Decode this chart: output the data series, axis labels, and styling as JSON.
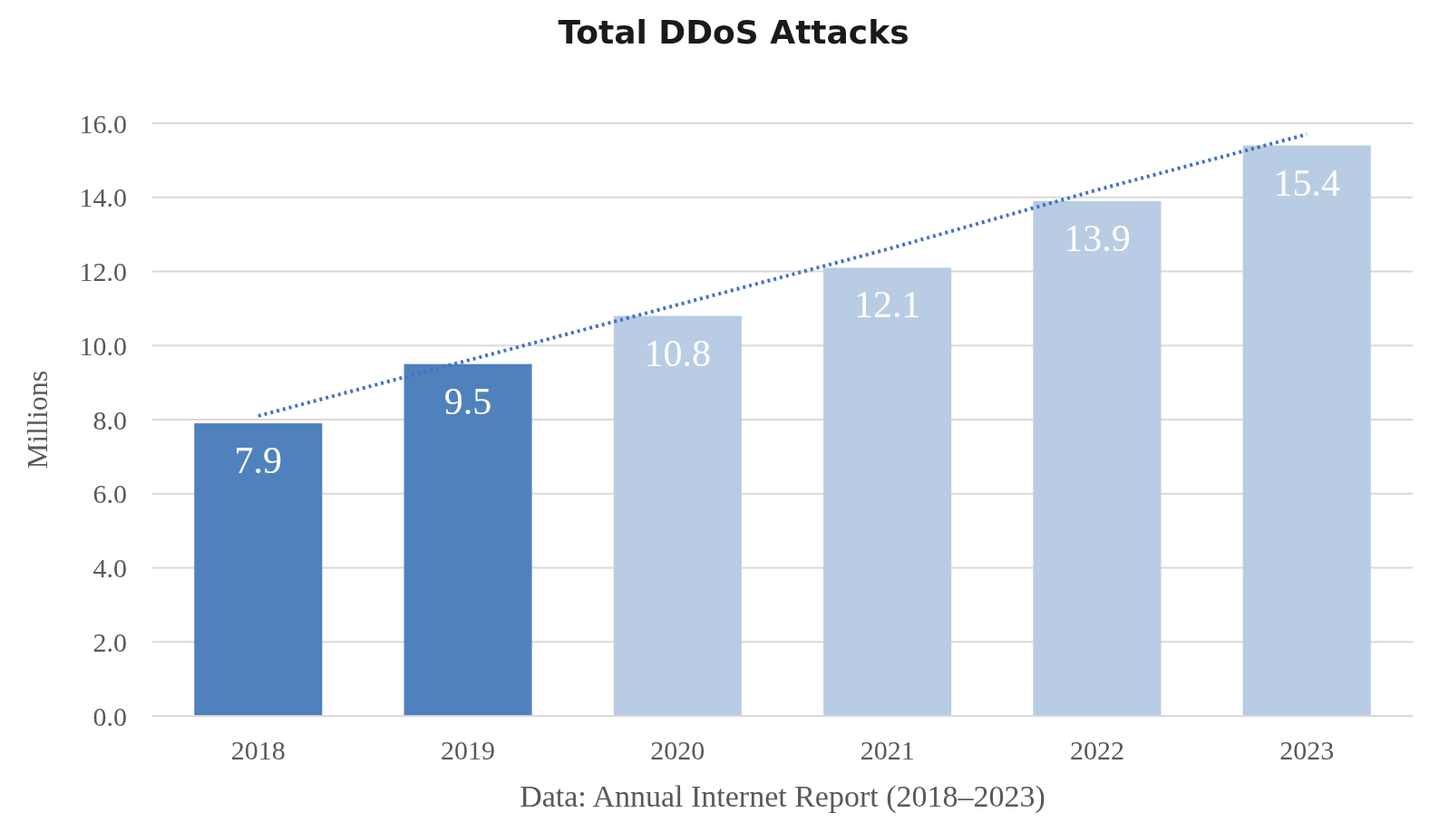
{
  "chart_data": {
    "type": "bar",
    "title": "Total DDoS Attacks",
    "ylabel": "Millions",
    "categories": [
      "2018",
      "2019",
      "2020",
      "2021",
      "2022",
      "2023"
    ],
    "series": [
      {
        "colors": [
          "#4f81bd",
          "#4f81bd",
          "#b8cce4",
          "#b8cce4",
          "#b8cce4",
          "#b8cce4"
        ],
        "values": [
          7.9,
          9.5,
          10.8,
          12.1,
          13.9,
          15.4
        ],
        "value_labels": [
          "7.9",
          "9.5",
          "10.8",
          "12.1",
          "13.9",
          "15.4"
        ]
      },
      {
        "type": "line",
        "values": [
          8.1,
          9.6,
          11.1,
          12.6,
          14.2,
          15.7
        ],
        "color": "#4472c4",
        "line_style": "dotted"
      }
    ],
    "ylim": [
      0,
      16
    ],
    "yticks": [
      {
        "value": 0,
        "label": "0.0"
      },
      {
        "value": 2,
        "label": "2.0"
      },
      {
        "value": 4,
        "label": "4.0"
      },
      {
        "value": 6,
        "label": "6.0"
      },
      {
        "value": 8,
        "label": "8.0"
      },
      {
        "value": 10,
        "label": "10.0"
      },
      {
        "value": 12,
        "label": "12.0"
      },
      {
        "value": 14,
        "label": "14.0"
      },
      {
        "value": 16,
        "label": "16.0"
      }
    ],
    "grid": "y",
    "marker": "none",
    "annotations": [
      "Data: Annual Internet Report (2018–2023)"
    ]
  }
}
